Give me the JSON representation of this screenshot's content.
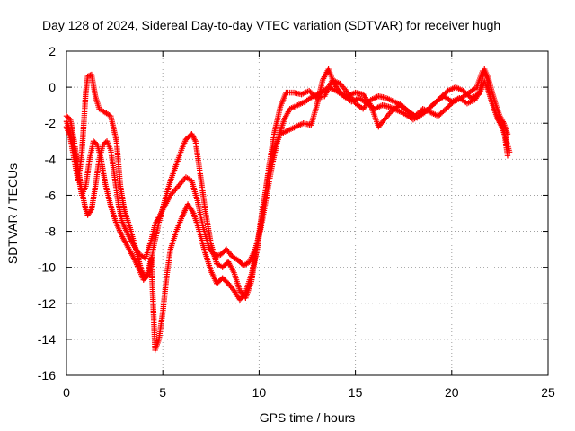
{
  "chart_data": {
    "type": "scatter",
    "title": "Day 128 of 2024, Sidereal Day-to-day VTEC variation (SDTVAR) for receiver hugh",
    "xlabel": "GPS time / hours",
    "ylabel": "SDTVAR / TECUs",
    "xlim": [
      0,
      25
    ],
    "ylim": [
      -16,
      2
    ],
    "x_ticks": [
      0,
      5,
      10,
      15,
      20,
      25
    ],
    "y_ticks": [
      -16,
      -14,
      -12,
      -10,
      -8,
      -6,
      -4,
      -2,
      0,
      2
    ],
    "grid": true,
    "marker": "+",
    "color": "#ff0000",
    "series": [
      {
        "name": "trace-1",
        "points": [
          [
            0,
            -1.6
          ],
          [
            0.2,
            -1.8
          ],
          [
            0.4,
            -3.0
          ],
          [
            0.6,
            -4.5
          ],
          [
            0.8,
            -5.8
          ],
          [
            1.0,
            -6.8
          ],
          [
            1.1,
            -7.1
          ],
          [
            1.3,
            -6.8
          ],
          [
            1.5,
            -5.5
          ],
          [
            1.7,
            -4.0
          ],
          [
            1.9,
            -3.2
          ],
          [
            2.1,
            -3.0
          ],
          [
            2.3,
            -3.5
          ],
          [
            2.5,
            -5.0
          ],
          [
            2.7,
            -6.5
          ],
          [
            2.9,
            -7.5
          ],
          [
            3.2,
            -8.2
          ],
          [
            3.5,
            -8.8
          ],
          [
            3.8,
            -9.3
          ],
          [
            4.1,
            -9.5
          ],
          [
            4.4,
            -8.5
          ],
          [
            4.6,
            -7.6
          ],
          [
            5.0,
            -6.8
          ],
          [
            5.4,
            -6.0
          ],
          [
            5.8,
            -5.5
          ],
          [
            6.2,
            -5.0
          ],
          [
            6.5,
            -5.2
          ],
          [
            6.8,
            -6.3
          ],
          [
            7.1,
            -7.8
          ],
          [
            7.4,
            -8.9
          ],
          [
            7.7,
            -9.4
          ],
          [
            8.0,
            -9.3
          ],
          [
            8.3,
            -9.0
          ],
          [
            8.6,
            -9.4
          ],
          [
            8.9,
            -9.6
          ],
          [
            9.2,
            -9.9
          ],
          [
            9.5,
            -9.7
          ],
          [
            9.8,
            -9.0
          ],
          [
            10.1,
            -7.8
          ],
          [
            10.4,
            -6.0
          ],
          [
            10.7,
            -4.2
          ],
          [
            11.0,
            -2.8
          ],
          [
            11.3,
            -1.8
          ],
          [
            11.6,
            -1.2
          ],
          [
            12.0,
            -1.0
          ],
          [
            12.4,
            -0.8
          ],
          [
            12.8,
            -0.5
          ],
          [
            13.2,
            -0.3
          ],
          [
            13.6,
            0.0
          ],
          [
            14.0,
            -0.2
          ],
          [
            14.4,
            -0.5
          ],
          [
            14.8,
            -0.8
          ],
          [
            15.2,
            -0.6
          ],
          [
            15.6,
            -0.9
          ],
          [
            16.0,
            -1.2
          ],
          [
            16.4,
            -1.0
          ],
          [
            16.8,
            -1.1
          ],
          [
            17.2,
            -1.3
          ],
          [
            17.6,
            -1.5
          ],
          [
            18.0,
            -1.8
          ],
          [
            18.4,
            -1.5
          ],
          [
            18.8,
            -1.2
          ],
          [
            19.2,
            -0.8
          ],
          [
            19.6,
            -0.5
          ],
          [
            20.0,
            -0.8
          ],
          [
            20.4,
            -0.6
          ],
          [
            20.8,
            -0.9
          ],
          [
            21.2,
            -0.7
          ],
          [
            21.5,
            -0.2
          ],
          [
            21.7,
            0.3
          ],
          [
            21.9,
            -0.2
          ],
          [
            22.1,
            -0.9
          ],
          [
            22.3,
            -1.5
          ],
          [
            22.5,
            -1.9
          ],
          [
            22.7,
            -2.3
          ],
          [
            22.9,
            -3.8
          ]
        ]
      },
      {
        "name": "trace-2",
        "points": [
          [
            0,
            -2.2
          ],
          [
            0.2,
            -2.8
          ],
          [
            0.4,
            -4.0
          ],
          [
            0.6,
            -5.2
          ],
          [
            0.7,
            -4.5
          ],
          [
            0.8,
            -3.6
          ],
          [
            0.9,
            -2.0
          ],
          [
            1.0,
            -0.3
          ],
          [
            1.1,
            0.6
          ],
          [
            1.3,
            0.7
          ],
          [
            1.5,
            -0.5
          ],
          [
            1.7,
            -1.2
          ],
          [
            2.0,
            -1.4
          ],
          [
            2.3,
            -1.6
          ],
          [
            2.6,
            -3.0
          ],
          [
            2.8,
            -5.5
          ],
          [
            3.0,
            -6.8
          ],
          [
            3.3,
            -7.8
          ],
          [
            3.6,
            -9.0
          ],
          [
            3.9,
            -10.2
          ],
          [
            4.1,
            -10.6
          ],
          [
            4.3,
            -10.4
          ],
          [
            4.5,
            -9.0
          ],
          [
            4.8,
            -7.5
          ],
          [
            5.1,
            -6.3
          ],
          [
            5.4,
            -5.2
          ],
          [
            5.7,
            -4.3
          ],
          [
            6.0,
            -3.4
          ],
          [
            6.2,
            -2.9
          ],
          [
            6.5,
            -2.6
          ],
          [
            6.7,
            -3.0
          ],
          [
            6.9,
            -4.5
          ],
          [
            7.2,
            -6.8
          ],
          [
            7.5,
            -8.7
          ],
          [
            7.8,
            -9.8
          ],
          [
            8.1,
            -10.0
          ],
          [
            8.4,
            -9.7
          ],
          [
            8.7,
            -10.3
          ],
          [
            9.0,
            -11.3
          ],
          [
            9.3,
            -11.7
          ],
          [
            9.6,
            -10.8
          ],
          [
            9.9,
            -8.8
          ],
          [
            10.2,
            -6.6
          ],
          [
            10.5,
            -4.8
          ],
          [
            10.8,
            -3.4
          ],
          [
            11.1,
            -2.6
          ],
          [
            11.5,
            -2.4
          ],
          [
            11.9,
            -2.2
          ],
          [
            12.3,
            -2.0
          ],
          [
            12.7,
            -2.1
          ],
          [
            13.0,
            -1.0
          ],
          [
            13.3,
            0.4
          ],
          [
            13.6,
            1.0
          ],
          [
            13.9,
            0.2
          ],
          [
            14.2,
            -0.3
          ],
          [
            14.6,
            -0.5
          ],
          [
            15.0,
            -0.3
          ],
          [
            15.4,
            -0.4
          ],
          [
            15.8,
            -1.0
          ],
          [
            16.2,
            -2.2
          ],
          [
            16.5,
            -1.8
          ],
          [
            16.9,
            -1.3
          ],
          [
            17.3,
            -1.0
          ],
          [
            17.7,
            -1.3
          ],
          [
            18.1,
            -1.6
          ],
          [
            18.5,
            -1.2
          ],
          [
            18.9,
            -1.4
          ],
          [
            19.3,
            -1.6
          ],
          [
            19.7,
            -1.2
          ],
          [
            20.1,
            -0.8
          ],
          [
            20.5,
            -0.6
          ],
          [
            20.9,
            -0.3
          ],
          [
            21.3,
            0.0
          ],
          [
            21.6,
            0.9
          ],
          [
            21.8,
            0.6
          ],
          [
            22.0,
            -0.5
          ],
          [
            22.2,
            -1.2
          ],
          [
            22.4,
            -1.8
          ],
          [
            22.6,
            -2.2
          ],
          [
            22.8,
            -2.8
          ],
          [
            23.0,
            -3.6
          ]
        ]
      },
      {
        "name": "trace-3",
        "points": [
          [
            0,
            -1.9
          ],
          [
            0.2,
            -2.5
          ],
          [
            0.4,
            -3.5
          ],
          [
            0.6,
            -4.8
          ],
          [
            0.8,
            -6.0
          ],
          [
            1.0,
            -5.5
          ],
          [
            1.2,
            -4.0
          ],
          [
            1.4,
            -3.0
          ],
          [
            1.6,
            -3.2
          ],
          [
            1.8,
            -4.0
          ],
          [
            2.0,
            -5.3
          ],
          [
            2.3,
            -6.6
          ],
          [
            2.6,
            -7.6
          ],
          [
            2.9,
            -8.3
          ],
          [
            3.2,
            -8.9
          ],
          [
            3.5,
            -9.5
          ],
          [
            3.8,
            -10.2
          ],
          [
            4.0,
            -10.7
          ],
          [
            4.2,
            -10.4
          ],
          [
            4.4,
            -9.5
          ],
          [
            4.6,
            -14.6
          ],
          [
            4.8,
            -14.0
          ],
          [
            5.0,
            -12.5
          ],
          [
            5.2,
            -10.5
          ],
          [
            5.4,
            -9.0
          ],
          [
            5.7,
            -8.0
          ],
          [
            6.0,
            -7.2
          ],
          [
            6.3,
            -6.5
          ],
          [
            6.6,
            -7.0
          ],
          [
            6.9,
            -8.0
          ],
          [
            7.2,
            -9.2
          ],
          [
            7.5,
            -10.2
          ],
          [
            7.8,
            -10.9
          ],
          [
            8.1,
            -10.6
          ],
          [
            8.4,
            -10.9
          ],
          [
            8.7,
            -11.3
          ],
          [
            9.0,
            -11.8
          ],
          [
            9.3,
            -11.4
          ],
          [
            9.6,
            -10.4
          ],
          [
            9.9,
            -9.0
          ],
          [
            10.2,
            -6.8
          ],
          [
            10.5,
            -4.5
          ],
          [
            10.8,
            -2.5
          ],
          [
            11.1,
            -1.1
          ],
          [
            11.4,
            -0.3
          ],
          [
            11.8,
            -0.3
          ],
          [
            12.2,
            -0.4
          ],
          [
            12.6,
            -0.2
          ],
          [
            13.0,
            -0.6
          ],
          [
            13.4,
            -0.5
          ],
          [
            13.8,
            0.4
          ],
          [
            14.2,
            0.2
          ],
          [
            14.6,
            -0.3
          ],
          [
            15.0,
            -0.9
          ],
          [
            15.4,
            -1.2
          ],
          [
            15.8,
            -0.7
          ],
          [
            16.2,
            -0.5
          ],
          [
            16.6,
            -0.6
          ],
          [
            17.0,
            -0.8
          ],
          [
            17.4,
            -1.0
          ],
          [
            17.8,
            -1.4
          ],
          [
            18.2,
            -1.7
          ],
          [
            18.6,
            -1.4
          ],
          [
            19.0,
            -1.0
          ],
          [
            19.4,
            -0.6
          ],
          [
            19.8,
            -0.2
          ],
          [
            20.2,
            0.0
          ],
          [
            20.6,
            -0.2
          ],
          [
            21.0,
            -0.6
          ],
          [
            21.4,
            -0.4
          ],
          [
            21.7,
            1.0
          ],
          [
            21.9,
            0.5
          ],
          [
            22.1,
            -0.3
          ],
          [
            22.3,
            -1.0
          ],
          [
            22.5,
            -1.6
          ],
          [
            22.7,
            -2.0
          ],
          [
            22.9,
            -2.6
          ]
        ]
      }
    ]
  }
}
